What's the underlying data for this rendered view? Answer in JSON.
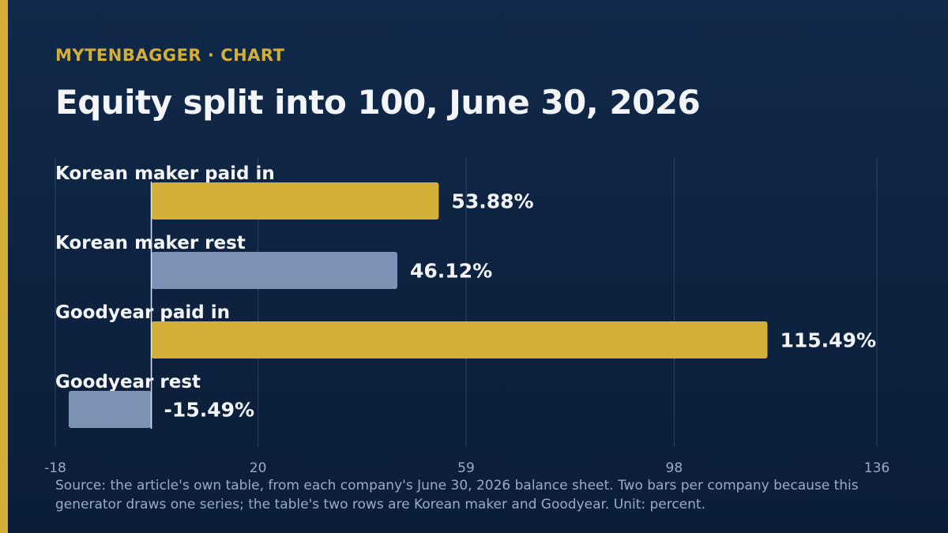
{
  "header": {
    "kicker": "MYTENBAGGER · CHART",
    "title": "Equity split into 100, June 30, 2026"
  },
  "source_note": "Source: the article's own table, from each company's June 30, 2026 balance sheet. Two bars per company because this generator draws one series; the table's two rows are Korean maker and Goodyear. Unit: percent.",
  "colors": {
    "accent": "#d4af37",
    "paid_in_bar": "#d4af37",
    "rest_bar": "#7b92b5",
    "background": "#0f2443",
    "label_text": "#f3f5f9",
    "tick_text": "#9aabc4",
    "grid": "#2b4263"
  },
  "chart_data": {
    "type": "bar",
    "orientation": "horizontal",
    "categories": [
      "Korean maker paid in",
      "Korean maker rest",
      "Goodyear paid in",
      "Goodyear rest"
    ],
    "values": [
      53.88,
      46.12,
      115.49,
      -15.49
    ],
    "value_labels": [
      "53.88%",
      "46.12%",
      "115.49%",
      "-15.49%"
    ],
    "bar_color_keys": [
      "paid_in_bar",
      "rest_bar",
      "paid_in_bar",
      "rest_bar"
    ],
    "xlim": [
      -18,
      136
    ],
    "xticks": [
      -18,
      20,
      59,
      98,
      136
    ],
    "xtick_labels": [
      "-18",
      "20",
      "59",
      "98",
      "136"
    ],
    "grid": true,
    "unit": "percent",
    "title": "Equity split into 100, June 30, 2026",
    "xlabel": "",
    "ylabel": ""
  }
}
